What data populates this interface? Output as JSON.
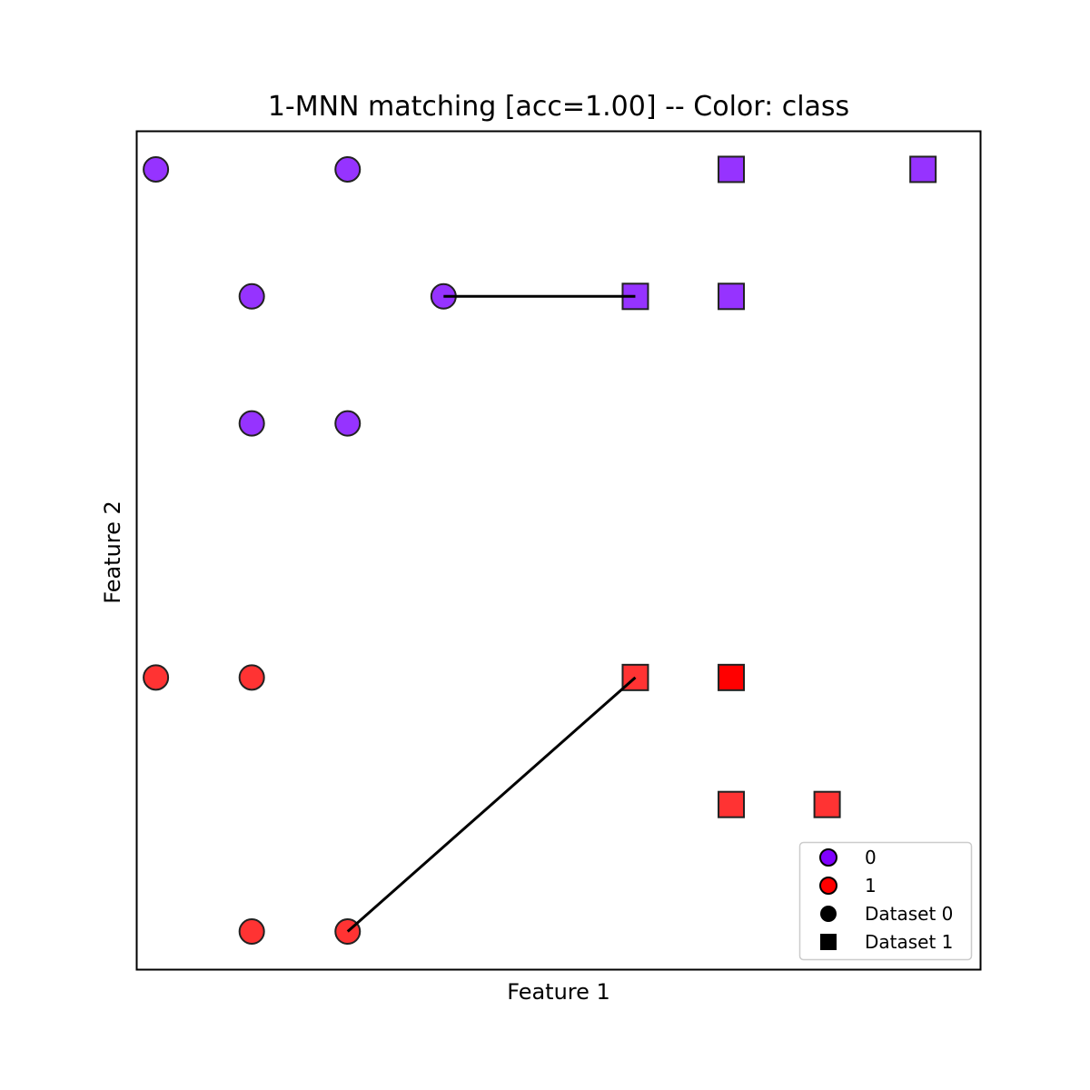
{
  "chart_data": {
    "type": "scatter",
    "title": "1-MNN matching [acc=1.00] -- Color: class",
    "xlabel": "Feature 1",
    "ylabel": "Feature 2",
    "xlim": [
      -0.2,
      8.6
    ],
    "ylim": [
      -0.3,
      6.3
    ],
    "grid": false,
    "ticks_visible": false,
    "legend_position": "lower-right",
    "class_colors": {
      "0": "#9633ff",
      "1": "#ff3333"
    },
    "series": [
      {
        "dataset": "Dataset 0",
        "marker": "circle",
        "points": [
          {
            "x": 0,
            "y": 6,
            "class": 0
          },
          {
            "x": 2,
            "y": 6,
            "class": 0
          },
          {
            "x": 1,
            "y": 5,
            "class": 0
          },
          {
            "x": 3,
            "y": 5,
            "class": 0
          },
          {
            "x": 1,
            "y": 4,
            "class": 0
          },
          {
            "x": 2,
            "y": 4,
            "class": 0
          },
          {
            "x": 0,
            "y": 2,
            "class": 1
          },
          {
            "x": 1,
            "y": 2,
            "class": 1
          },
          {
            "x": 1,
            "y": 0,
            "class": 1
          },
          {
            "x": 2,
            "y": 0,
            "class": 1
          }
        ]
      },
      {
        "dataset": "Dataset 1",
        "marker": "square",
        "points": [
          {
            "x": 6,
            "y": 6,
            "class": 0
          },
          {
            "x": 8,
            "y": 6,
            "class": 0
          },
          {
            "x": 5,
            "y": 5,
            "class": 0
          },
          {
            "x": 6,
            "y": 5,
            "class": 0
          },
          {
            "x": 5,
            "y": 2,
            "class": 1
          },
          {
            "x": 6,
            "y": 2,
            "class": 1,
            "color": "#ff0000"
          },
          {
            "x": 6,
            "y": 1,
            "class": 1
          },
          {
            "x": 7,
            "y": 1,
            "class": 1
          }
        ]
      }
    ],
    "matches": [
      {
        "from": [
          3,
          5
        ],
        "to": [
          5,
          5
        ]
      },
      {
        "from": [
          2,
          0
        ],
        "to": [
          5,
          2
        ]
      }
    ],
    "legend": [
      {
        "label": "0",
        "marker": "circle",
        "color": "#8000ff"
      },
      {
        "label": "1",
        "marker": "circle",
        "color": "#ff0000"
      },
      {
        "label": "Dataset 0",
        "marker": "circle",
        "color": "#000000"
      },
      {
        "label": "Dataset 1",
        "marker": "square",
        "color": "#000000"
      }
    ]
  }
}
